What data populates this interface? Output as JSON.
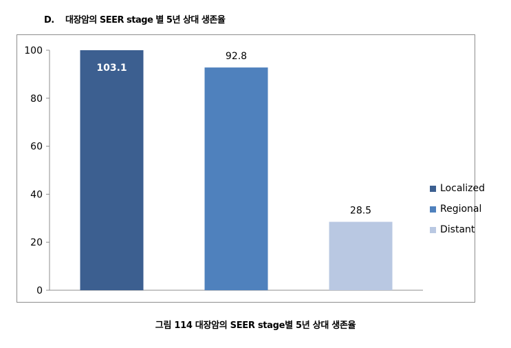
{
  "figure": {
    "panel_letter": "D.",
    "panel_title": "대장암의 SEER stage 별 5년 상대 생존율",
    "caption": "그림 114 대장암의 SEER stage별 5년 상대 생존율"
  },
  "chart_data": {
    "type": "bar",
    "categories": [
      "Localized",
      "Regional",
      "Distant"
    ],
    "values": [
      103.1,
      92.8,
      28.5
    ],
    "data_labels": [
      "103.1",
      "92.8",
      "28.5"
    ],
    "colors": [
      "#3c5f90",
      "#4f81bd",
      "#b9c8e2"
    ],
    "ylim": [
      0,
      100
    ],
    "yticks": [
      0,
      20,
      40,
      60,
      80,
      100
    ],
    "title": "",
    "xlabel": "",
    "ylabel": "",
    "grid": false,
    "legend": {
      "position": "right",
      "entries": [
        "Localized",
        "Regional",
        "Distant"
      ]
    }
  }
}
